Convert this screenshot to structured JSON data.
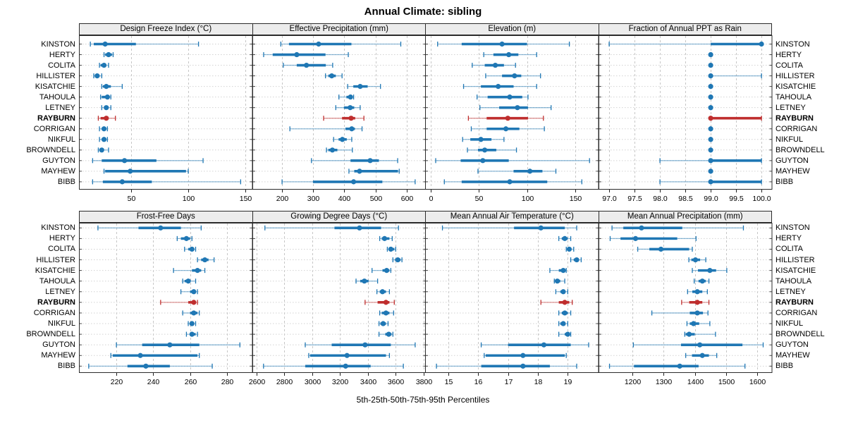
{
  "title": "Annual Climate: sibling",
  "footer": "5th-25th-50th-75th-95th Percentiles",
  "colors": {
    "normal": "#1f77b4",
    "highlight": "#bf2e2e",
    "grid": "#c6c6c6",
    "row_grid": "#d2d2d2",
    "panel_border": "#2b2b2b",
    "header_bg": "#ececec"
  },
  "chart_data": {
    "type": "dotplot-interval",
    "percentiles": [
      "5th",
      "25th",
      "50th",
      "75th",
      "95th"
    ],
    "stations": [
      "KINSTON",
      "HERTY",
      "COLITA",
      "HILLISTER",
      "KISATCHIE",
      "TAHOULA",
      "LETNEY",
      "RAYBURN",
      "CORRIGAN",
      "NIKFUL",
      "BROWNDELL",
      "GUYTON",
      "MAYHEW",
      "BIBB"
    ],
    "highlight_station": "RAYBURN",
    "panels": [
      {
        "title": "Design Freeze Index (°C)",
        "grid_row": 0,
        "grid_col": 0,
        "xlim": [
          4,
          156
        ],
        "ticks": [
          50,
          100,
          150
        ],
        "tick_labels": [
          "50",
          "100",
          "150"
        ],
        "values": {
          "KINSTON": [
            14,
            17,
            27,
            54,
            109
          ],
          "HERTY": [
            26,
            27,
            30,
            33,
            34
          ],
          "COLITA": [
            22,
            23,
            26,
            28,
            30
          ],
          "HILLISTER": [
            17,
            18,
            20,
            22,
            24
          ],
          "KISATCHIE": [
            24,
            25,
            28,
            32,
            42
          ],
          "TAHOULA": [
            23,
            24,
            29,
            30,
            32
          ],
          "LETNEY": [
            24,
            26,
            28,
            30,
            32
          ],
          "RAYBURN": [
            21,
            23,
            28,
            30,
            36
          ],
          "CORRIGAN": [
            22,
            24,
            26,
            28,
            29
          ],
          "NIKFUL": [
            22,
            24,
            26,
            28,
            29
          ],
          "BROWNDELL": [
            21,
            22,
            24,
            25,
            30
          ],
          "GUYTON": [
            16,
            24,
            44,
            72,
            113
          ],
          "MAYHEW": [
            26,
            27,
            49,
            98,
            100
          ],
          "BIBB": [
            16,
            25,
            42,
            68,
            146
          ]
        }
      },
      {
        "title": "Effective Precipitation (mm)",
        "grid_row": 0,
        "grid_col": 1,
        "xlim": [
          106,
          660
        ],
        "ticks": [
          200,
          300,
          400,
          500,
          600
        ],
        "tick_labels": [
          "200",
          "300",
          "400",
          "500",
          "600"
        ],
        "values": {
          "KINSTON": [
            197,
            223,
            318,
            423,
            581
          ],
          "HERTY": [
            142,
            171,
            248,
            340,
            413
          ],
          "COLITA": [
            205,
            248,
            279,
            341,
            363
          ],
          "HILLISTER": [
            340,
            349,
            360,
            373,
            393
          ],
          "KISATCHIE": [
            411,
            429,
            451,
            475,
            516
          ],
          "TAHOULA": [
            383,
            407,
            420,
            426,
            430
          ],
          "LETNEY": [
            373,
            399,
            419,
            432,
            451
          ],
          "RAYBURN": [
            334,
            393,
            422,
            435,
            463
          ],
          "CORRIGAN": [
            226,
            404,
            424,
            434,
            457
          ],
          "NIKFUL": [
            366,
            382,
            394,
            408,
            424
          ],
          "BROWNDELL": [
            343,
            349,
            362,
            378,
            426
          ],
          "GUYTON": [
            295,
            420,
            483,
            511,
            571
          ],
          "MAYHEW": [
            415,
            432,
            449,
            572,
            576
          ],
          "BIBB": [
            201,
            300,
            430,
            522,
            627
          ]
        }
      },
      {
        "title": "Elevation (m)",
        "grid_row": 0,
        "grid_col": 2,
        "xlim": [
          -6,
          174
        ],
        "ticks": [
          0,
          50,
          100,
          150
        ],
        "tick_labels": [
          "0",
          "50",
          "100",
          "150"
        ],
        "values": {
          "KINSTON": [
            7,
            32,
            74,
            100,
            144
          ],
          "HERTY": [
            55,
            65,
            81,
            91,
            110
          ],
          "COLITA": [
            43,
            56,
            67,
            76,
            88
          ],
          "HILLISTER": [
            57,
            74,
            87,
            94,
            114
          ],
          "KISATCHIE": [
            34,
            52,
            70,
            86,
            110
          ],
          "TAHOULA": [
            48,
            59,
            82,
            95,
            101
          ],
          "LETNEY": [
            51,
            71,
            90,
            101,
            125
          ],
          "RAYBURN": [
            39,
            58,
            80,
            101,
            117
          ],
          "CORRIGAN": [
            42,
            58,
            78,
            92,
            118
          ],
          "NIKFUL": [
            33,
            41,
            52,
            63,
            76
          ],
          "BROWNDELL": [
            38,
            49,
            56,
            68,
            89
          ],
          "GUYTON": [
            5,
            31,
            54,
            81,
            165
          ],
          "MAYHEW": [
            49,
            86,
            103,
            116,
            130
          ],
          "BIBB": [
            14,
            32,
            82,
            121,
            157
          ]
        }
      },
      {
        "title": "Fraction of Annual PPT as Rain",
        "grid_row": 0,
        "grid_col": 3,
        "xlim": [
          96.79,
          100.2
        ],
        "ticks": [
          97,
          97.5,
          98,
          98.5,
          99,
          99.5,
          100
        ],
        "tick_labels": [
          "97.0",
          "97.5",
          "98.0",
          "98.5",
          "99.0",
          "99.5",
          "100.0"
        ],
        "values": {
          "KINSTON": [
            97,
            99,
            100,
            100,
            100
          ],
          "HERTY": [
            99,
            99,
            99,
            99,
            99
          ],
          "COLITA": [
            99,
            99,
            99,
            99,
            99
          ],
          "HILLISTER": [
            99,
            99,
            99,
            99,
            100
          ],
          "KISATCHIE": [
            99,
            99,
            99,
            99,
            99
          ],
          "TAHOULA": [
            99,
            99,
            99,
            99,
            99
          ],
          "LETNEY": [
            99,
            99,
            99,
            99,
            99
          ],
          "RAYBURN": [
            99,
            99,
            99,
            100,
            100
          ],
          "CORRIGAN": [
            99,
            99,
            99,
            99,
            99
          ],
          "NIKFUL": [
            99,
            99,
            99,
            99,
            99
          ],
          "BROWNDELL": [
            99,
            99,
            99,
            99,
            99
          ],
          "GUYTON": [
            98,
            99,
            99,
            100,
            100
          ],
          "MAYHEW": [
            99,
            99,
            99,
            99,
            99
          ],
          "BIBB": [
            98,
            99,
            99,
            100,
            100
          ]
        }
      },
      {
        "title": "Frost-Free Days",
        "grid_row": 1,
        "grid_col": 0,
        "xlim": [
          199.7,
          293.6
        ],
        "ticks": [
          220,
          240,
          260,
          280
        ],
        "tick_labels": [
          "220",
          "240",
          "260",
          "280"
        ],
        "values": {
          "KINSTON": [
            210,
            232,
            244,
            255,
            266
          ],
          "HERTY": [
            253,
            255,
            258,
            260,
            261
          ],
          "COLITA": [
            257,
            259,
            261,
            262,
            263
          ],
          "HILLISTER": [
            264,
            266,
            268,
            270,
            273
          ],
          "KISATCHIE": [
            251,
            261,
            264,
            266,
            268
          ],
          "TAHOULA": [
            256,
            257,
            259,
            260,
            263
          ],
          "LETNEY": [
            255,
            260,
            262,
            263,
            264
          ],
          "RAYBURN": [
            244,
            259,
            262,
            263,
            264
          ],
          "CORRIGAN": [
            256,
            260,
            262,
            264,
            265
          ],
          "NIKFUL": [
            259,
            260,
            261,
            262,
            263
          ],
          "BROWNDELL": [
            258,
            260,
            261,
            263,
            264
          ],
          "GUYTON": [
            220,
            234,
            249,
            265,
            287
          ],
          "MAYHEW": [
            217,
            218,
            233,
            264,
            265
          ],
          "BIBB": [
            205,
            226,
            236,
            249,
            272
          ]
        }
      },
      {
        "title": "Growing Degree Days (°C)",
        "grid_row": 1,
        "grid_col": 1,
        "xlim": [
          2570,
          3814
        ],
        "ticks": [
          2600,
          2800,
          3000,
          3200,
          3400,
          3600,
          3800
        ],
        "tick_labels": [
          "2600",
          "2800",
          "3000",
          "3200",
          "3400",
          "3600",
          "3800"
        ],
        "values": {
          "KINSTON": [
            2660,
            3160,
            3340,
            3495,
            3620
          ],
          "HERTY": [
            3485,
            3500,
            3520,
            3555,
            3575
          ],
          "COLITA": [
            3540,
            3555,
            3565,
            3590,
            3600
          ],
          "HILLISTER": [
            3580,
            3595,
            3615,
            3635,
            3645
          ],
          "KISATCHIE": [
            3430,
            3505,
            3535,
            3555,
            3565
          ],
          "TAHOULA": [
            3315,
            3345,
            3375,
            3405,
            3470
          ],
          "LETNEY": [
            3465,
            3485,
            3505,
            3530,
            3555
          ],
          "RAYBURN": [
            3380,
            3470,
            3530,
            3555,
            3590
          ],
          "CORRIGAN": [
            3485,
            3500,
            3530,
            3555,
            3585
          ],
          "NIKFUL": [
            3480,
            3490,
            3510,
            3530,
            3545
          ],
          "BROWNDELL": [
            3480,
            3525,
            3550,
            3570,
            3580
          ],
          "GUYTON": [
            2950,
            3140,
            3380,
            3565,
            3740
          ],
          "MAYHEW": [
            2975,
            2985,
            3250,
            3530,
            3555
          ],
          "BIBB": [
            2650,
            2950,
            3240,
            3420,
            3655
          ]
        }
      },
      {
        "title": "Mean Annual Air Temperature (°C)",
        "grid_row": 1,
        "grid_col": 2,
        "xlim": [
          14.22,
          20.02
        ],
        "ticks": [
          15,
          16,
          17,
          18,
          19
        ],
        "tick_labels": [
          "15",
          "16",
          "17",
          "18",
          "19"
        ],
        "values": {
          "KINSTON": [
            14.8,
            17.2,
            18.1,
            18.9,
            19.3
          ],
          "HERTY": [
            18.7,
            18.8,
            18.9,
            19.0,
            19.1
          ],
          "COLITA": [
            18.95,
            19.0,
            19.05,
            19.1,
            19.2
          ],
          "HILLISTER": [
            19.1,
            19.2,
            19.3,
            19.35,
            19.45
          ],
          "KISATCHIE": [
            18.4,
            18.7,
            18.85,
            18.9,
            18.95
          ],
          "TAHOULA": [
            18.55,
            18.6,
            18.65,
            18.75,
            18.9
          ],
          "LETNEY": [
            18.6,
            18.75,
            18.85,
            18.9,
            19.0
          ],
          "RAYBURN": [
            18.1,
            18.7,
            18.9,
            19.05,
            19.15
          ],
          "CORRIGAN": [
            18.7,
            18.8,
            18.9,
            19.0,
            19.1
          ],
          "NIKFUL": [
            18.7,
            18.75,
            18.85,
            18.9,
            19.0
          ],
          "BROWNDELL": [
            18.7,
            18.9,
            19.0,
            19.05,
            19.1
          ],
          "GUYTON": [
            16.1,
            17.0,
            18.2,
            19.1,
            19.7
          ],
          "MAYHEW": [
            16.2,
            16.25,
            17.5,
            18.9,
            18.95
          ],
          "BIBB": [
            14.6,
            16.1,
            17.5,
            18.4,
            19.3
          ]
        }
      },
      {
        "title": "Mean Annual Precipitation (mm)",
        "grid_row": 1,
        "grid_col": 3,
        "xlim": [
          1093,
          1645
        ],
        "ticks": [
          1200,
          1300,
          1400,
          1500,
          1600
        ],
        "tick_labels": [
          "1200",
          "1300",
          "1400",
          "1500",
          "1600"
        ],
        "values": {
          "KINSTON": [
            1136,
            1172,
            1230,
            1360,
            1555
          ],
          "HERTY": [
            1130,
            1163,
            1211,
            1344,
            1404
          ],
          "COLITA": [
            1218,
            1255,
            1292,
            1382,
            1392
          ],
          "HILLISTER": [
            1381,
            1389,
            1402,
            1417,
            1435
          ],
          "KISATCHIE": [
            1392,
            1410,
            1448,
            1468,
            1502
          ],
          "TAHOULA": [
            1398,
            1412,
            1424,
            1435,
            1445
          ],
          "LETNEY": [
            1377,
            1392,
            1408,
            1424,
            1440
          ],
          "RAYBURN": [
            1358,
            1382,
            1408,
            1424,
            1445
          ],
          "CORRIGAN": [
            1263,
            1384,
            1408,
            1426,
            1442
          ],
          "NIKFUL": [
            1375,
            1384,
            1396,
            1414,
            1448
          ],
          "BROWNDELL": [
            1368,
            1371,
            1382,
            1400,
            1466
          ],
          "GUYTON": [
            1204,
            1356,
            1416,
            1552,
            1618
          ],
          "MAYHEW": [
            1371,
            1391,
            1424,
            1445,
            1470
          ],
          "BIBB": [
            1128,
            1206,
            1352,
            1412,
            1560
          ]
        }
      }
    ]
  }
}
